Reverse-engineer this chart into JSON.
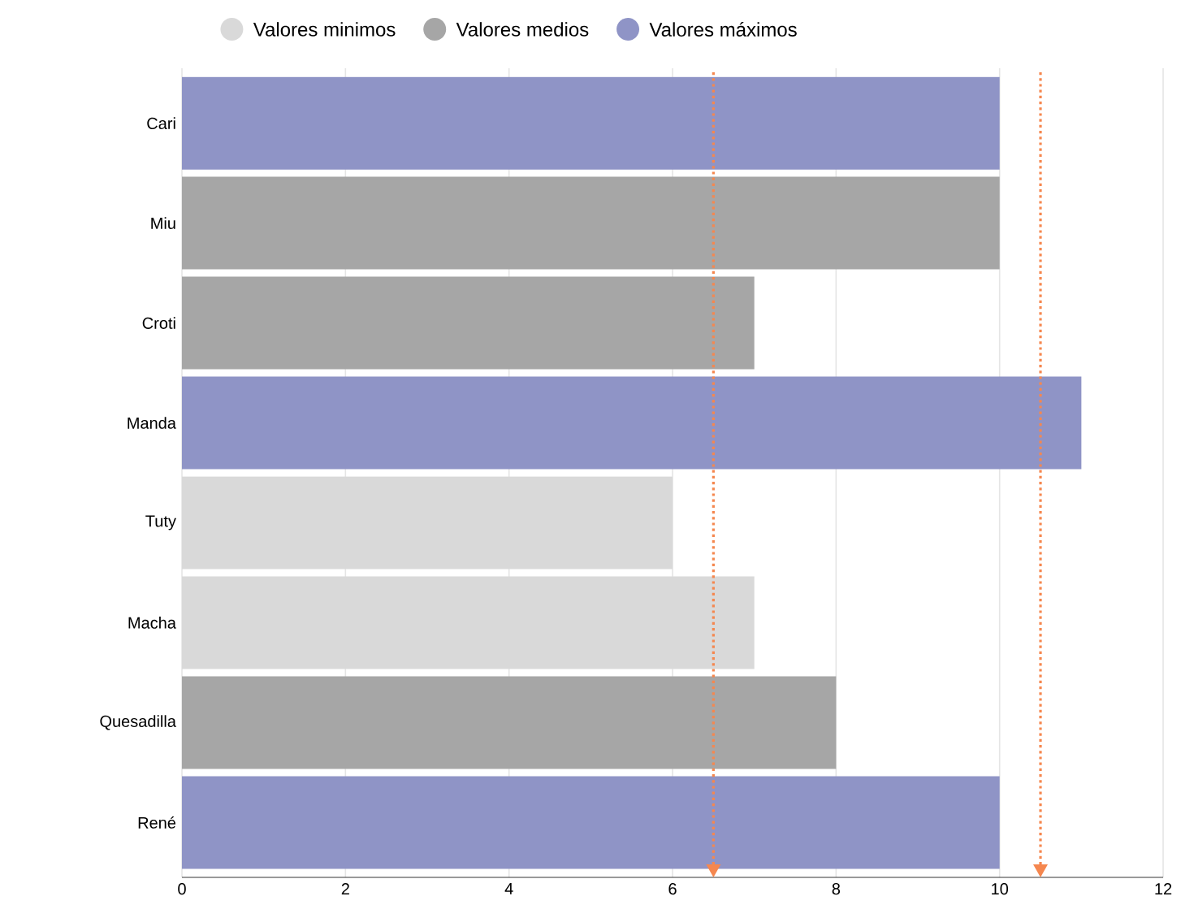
{
  "chart_data": {
    "type": "bar",
    "orientation": "horizontal",
    "categories": [
      "Cari",
      "Miu",
      "Croti",
      "Manda",
      "Tuty",
      "Macha",
      "Quesadilla",
      "René"
    ],
    "series": [
      {
        "name": "Valores minimos",
        "color": "#d9d9d9",
        "values": [
          null,
          null,
          null,
          null,
          6,
          7,
          null,
          null
        ]
      },
      {
        "name": "Valores medios",
        "color": "#a6a6a6",
        "values": [
          null,
          10,
          7,
          null,
          null,
          null,
          8,
          null
        ]
      },
      {
        "name": "Valores máximos",
        "color": "#8f94c6",
        "values": [
          10,
          null,
          null,
          11,
          null,
          null,
          null,
          10
        ]
      }
    ],
    "xlim": [
      0,
      12
    ],
    "xticks": [
      0,
      2,
      4,
      6,
      8,
      10,
      12
    ],
    "grid": "x",
    "legend": "top",
    "ref_lines": [
      {
        "axis": "x",
        "value": 6.5,
        "color": "#f5874f",
        "line_style": "dotted"
      },
      {
        "axis": "x",
        "value": 10.5,
        "color": "#f5874f",
        "line_style": "dotted"
      }
    ]
  }
}
